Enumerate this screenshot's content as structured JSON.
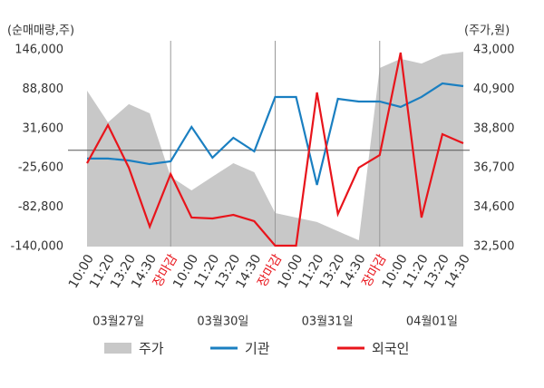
{
  "chart_data": {
    "type": "combo",
    "y_axis_label": "(순매매량,주)",
    "y2_axis_label": "(주가,원)",
    "categories": [
      "10:00",
      "11:20",
      "13:20",
      "14:30",
      "장마감",
      "10:00",
      "11:20",
      "13:20",
      "14:30",
      "장마감",
      "10:00",
      "11:20",
      "13:20",
      "14:30",
      "장마감",
      "10:00",
      "11:20",
      "13:20",
      "14:30"
    ],
    "groups": [
      "03월27일",
      "03월30일",
      "03월31일",
      "04월01일"
    ],
    "ylim": [
      -140000,
      146000
    ],
    "yticks": [
      {
        "value": 146000,
        "label": "146,000"
      },
      {
        "value": 88800,
        "label": "88,800"
      },
      {
        "value": 31600,
        "label": "31,600"
      },
      {
        "value": -25600,
        "label": "-25,600"
      },
      {
        "value": -82800,
        "label": "-82,800"
      },
      {
        "value": -140000,
        "label": "-140,000"
      }
    ],
    "y2lim": [
      32500,
      43000
    ],
    "y2ticks": [
      {
        "value": 43000,
        "label": "43,000"
      },
      {
        "value": 40900,
        "label": "40,900"
      },
      {
        "value": 38800,
        "label": "38,800"
      },
      {
        "value": 36700,
        "label": "36,700"
      },
      {
        "value": 34600,
        "label": "34,600"
      },
      {
        "value": 32500,
        "label": "32,500"
      }
    ],
    "series": [
      {
        "name": "주가",
        "type": "area",
        "axis": "y2",
        "color": "#c8c8c8",
        "values": [
          40820,
          39130,
          40100,
          39610,
          36230,
          35500,
          36230,
          36950,
          36470,
          34290,
          34050,
          33810,
          33320,
          32840,
          42030,
          42520,
          42270,
          42760,
          42900
        ]
      },
      {
        "name": "기관",
        "type": "line",
        "color": "#1a7fc1",
        "values": [
          -12000,
          -12000,
          -14800,
          -20100,
          -16100,
          34000,
          -10800,
          18200,
          -1600,
          77500,
          77500,
          -50400,
          74800,
          70900,
          70900,
          63000,
          77500,
          97200,
          93300
        ]
      },
      {
        "name": "외국인",
        "type": "line",
        "color": "#e8141b",
        "values": [
          -18800,
          36600,
          -25300,
          -111000,
          -34600,
          -97800,
          -99100,
          -93900,
          -103100,
          -138700,
          -138700,
          84100,
          -92600,
          -25300,
          -6900,
          142000,
          -97800,
          23400,
          10200
        ]
      }
    ]
  }
}
